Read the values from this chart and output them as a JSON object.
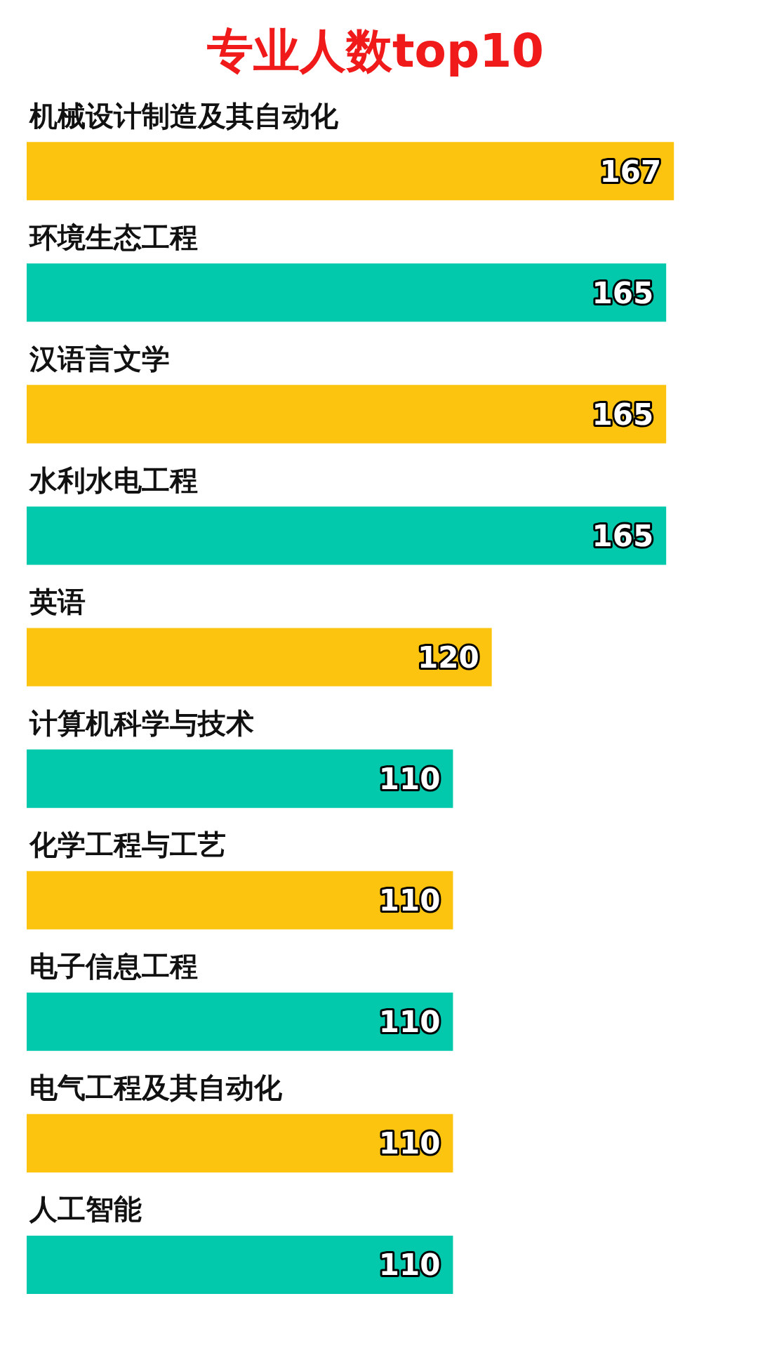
{
  "chart_data": {
    "type": "bar",
    "orientation": "horizontal",
    "title": "专业人数top10",
    "categories": [
      "机械设计制造及其自动化",
      "环境生态工程",
      "汉语言文学",
      "水利水电工程",
      "英语",
      "计算机科学与技术",
      "化学工程与工艺",
      "电子信息工程",
      "电气工程及其自动化",
      "人工智能"
    ],
    "values": [
      167,
      165,
      165,
      165,
      120,
      110,
      110,
      110,
      110,
      110
    ],
    "colors": [
      "#fdc40f",
      "#02c9ac",
      "#fdc40f",
      "#02c9ac",
      "#fdc40f",
      "#02c9ac",
      "#fdc40f",
      "#02c9ac",
      "#fdc40f",
      "#02c9ac"
    ],
    "data_labels": true
  }
}
